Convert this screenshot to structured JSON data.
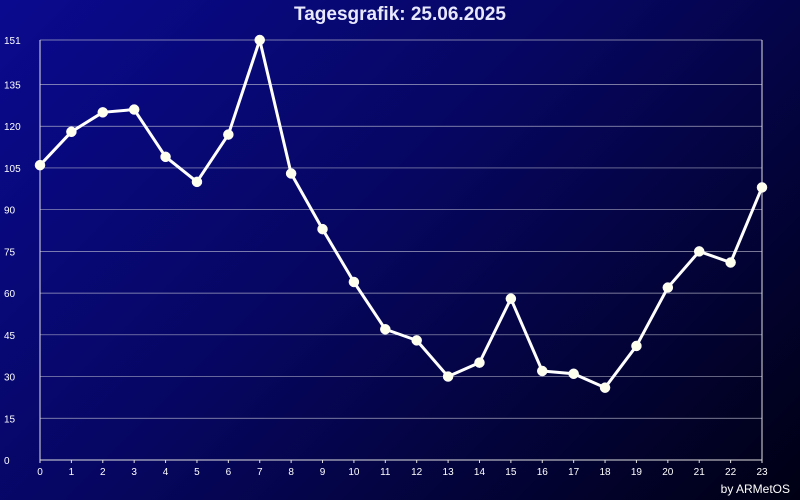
{
  "header": {
    "title": "Tagesgrafik: 25.06.2025"
  },
  "footer": {
    "credit": "by ARMetOS"
  },
  "colors": {
    "line": "#ffffff",
    "marker": "#ffffee",
    "grid": "#c8c8d8",
    "axis": "#e0e0e0"
  },
  "chart_data": {
    "type": "line",
    "title": "Tagesgrafik: 25.06.2025",
    "xlabel": "",
    "ylabel": "",
    "x": [
      0,
      1,
      2,
      3,
      4,
      5,
      6,
      7,
      8,
      9,
      10,
      11,
      12,
      13,
      14,
      15,
      16,
      17,
      18,
      19,
      20,
      21,
      22,
      23
    ],
    "series": [
      {
        "values": [
          106,
          118,
          125,
          126,
          109,
          100,
          117,
          151,
          103,
          83,
          64,
          47,
          43,
          30,
          35,
          58,
          32,
          31,
          26,
          41,
          62,
          75,
          71,
          98
        ]
      }
    ],
    "xlim": [
      0,
      23
    ],
    "ylim": [
      0,
      151
    ],
    "yticks": [
      0,
      15,
      30,
      45,
      60,
      75,
      90,
      105,
      120,
      135,
      151
    ],
    "xticks": [
      0,
      1,
      2,
      3,
      4,
      5,
      6,
      7,
      8,
      9,
      10,
      11,
      12,
      13,
      14,
      15,
      16,
      17,
      18,
      19,
      20,
      21,
      22,
      23
    ],
    "grid": true,
    "legend": "none"
  }
}
